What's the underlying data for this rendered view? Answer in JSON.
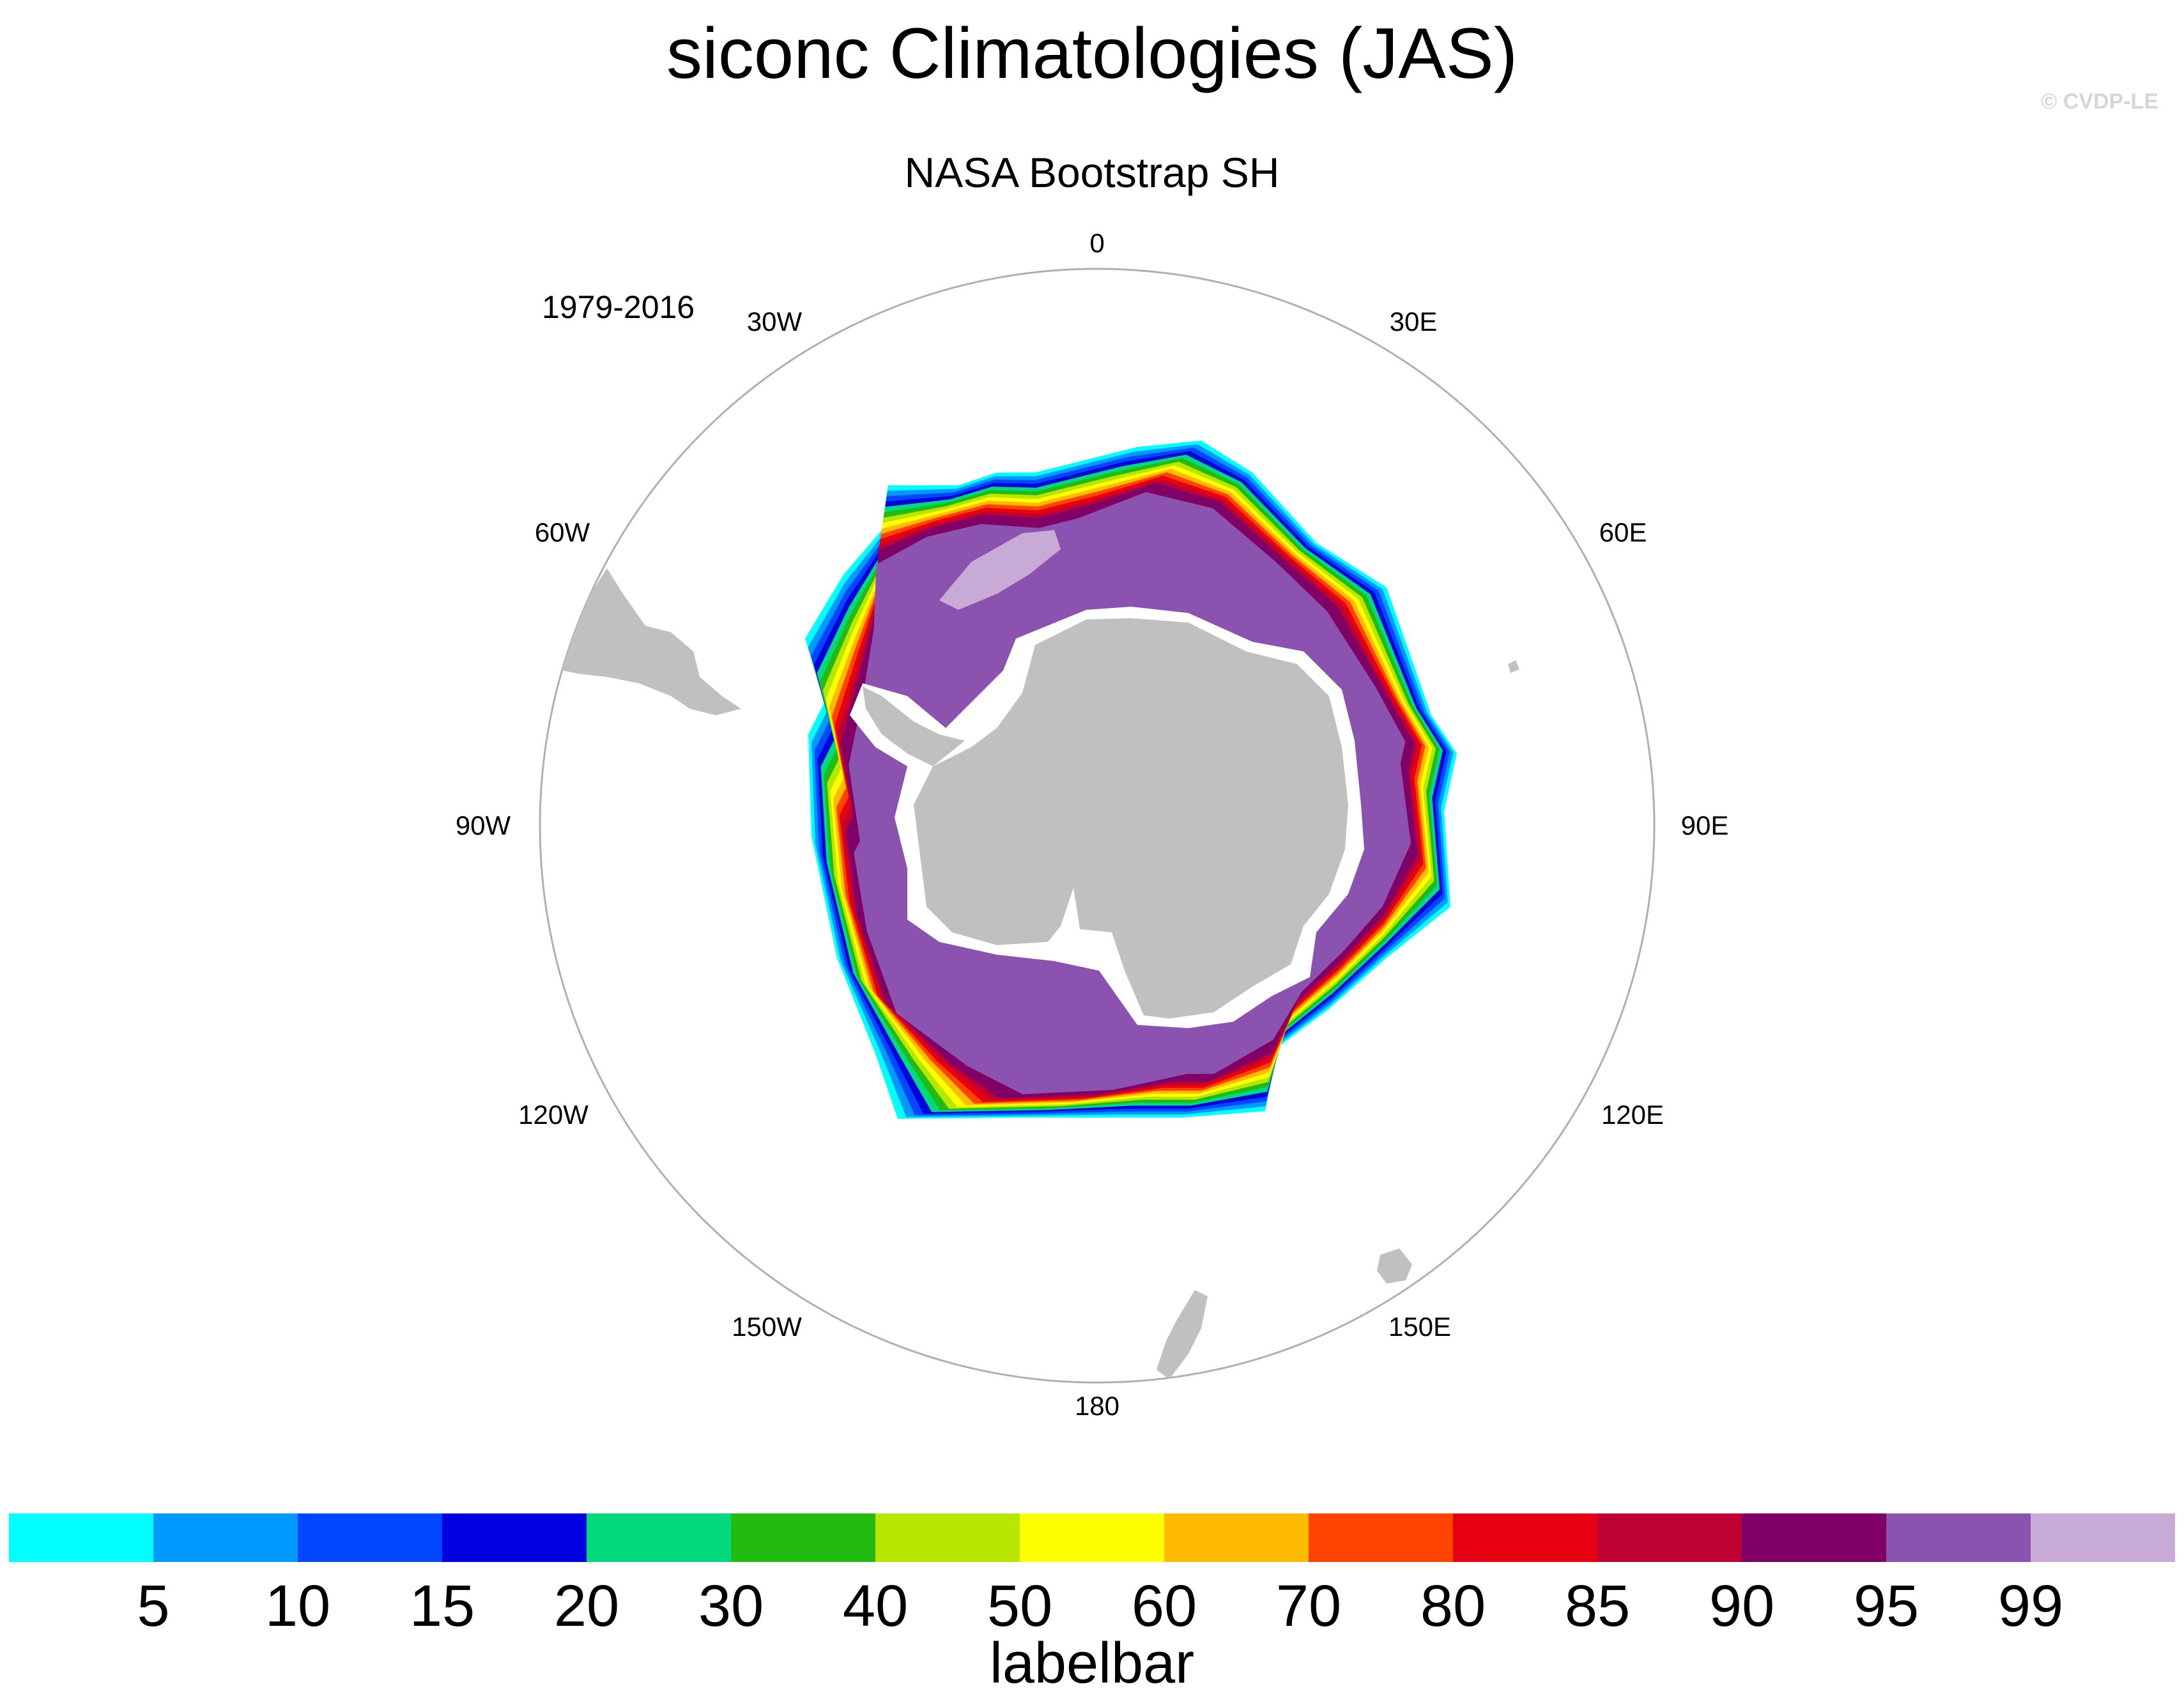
{
  "title": "siconc Climatologies (JAS)",
  "credit": "© CVDP-LE",
  "subtitle": "NASA Bootstrap SH",
  "period": "1979-2016",
  "lon_labels": {
    "lon_0": "0",
    "lon_30e": "30E",
    "lon_60e": "60E",
    "lon_90e": "90E",
    "lon_120e": "120E",
    "lon_150e": "150E",
    "lon_180": "180",
    "lon_150w": "150W",
    "lon_120w": "120W",
    "lon_90w": "90W",
    "lon_60w": "60W",
    "lon_30w": "30W"
  },
  "colorbar": {
    "label": "labelbar",
    "levels": [
      "5",
      "10",
      "15",
      "20",
      "30",
      "40",
      "50",
      "60",
      "70",
      "80",
      "85",
      "90",
      "95",
      "99"
    ],
    "colors": [
      "#00ffff",
      "#0099ff",
      "#0047ff",
      "#0000e0",
      "#00d97c",
      "#22bb11",
      "#b8e600",
      "#ffff00",
      "#ffbb00",
      "#ff4400",
      "#e60012",
      "#bf0033",
      "#800066",
      "#8c52b0",
      "#c8aad6"
    ]
  },
  "map_colors": {
    "land": "#c0c0c0",
    "coast_ice": "#ffffff",
    "outline": "#b0b0b0"
  }
}
